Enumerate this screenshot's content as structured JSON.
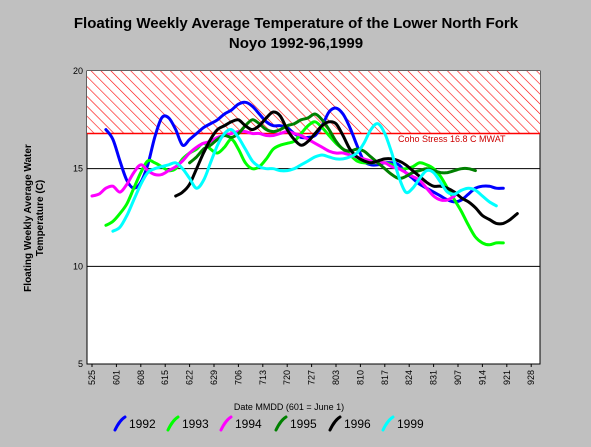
{
  "chart_data": {
    "type": "line",
    "title_line1": "Floating Weekly Average Temperature of the Lower North Fork",
    "title_line2": "Noyo 1992-96,1999",
    "ylabel_line1": "Floating Weekly Average Water",
    "ylabel_line2": "Temperature (C)",
    "xlabel": "Date MMDD (601 = June 1)",
    "ylim": [
      5,
      20
    ],
    "y_ticks": [
      "5",
      "10",
      "15",
      "20"
    ],
    "x_ticks": [
      "525",
      "601",
      "608",
      "615",
      "622",
      "629",
      "706",
      "713",
      "720",
      "727",
      "803",
      "810",
      "817",
      "824",
      "831",
      "907",
      "914",
      "921",
      "928"
    ],
    "threshold": {
      "value": 16.8,
      "label": "Coho Stress 16.8  C MWAT",
      "color": "#ff0000"
    },
    "legend_position": "bottom",
    "series": [
      {
        "name": "1992",
        "color": "#0000ff",
        "x": [
          4,
          6,
          8,
          10,
          12,
          14,
          16,
          18,
          20,
          22,
          24,
          26,
          28,
          30,
          32,
          34,
          36,
          38,
          40,
          42,
          44,
          46,
          48,
          50,
          52,
          54,
          56,
          58,
          60,
          62,
          64,
          66,
          68,
          70,
          72,
          74,
          76,
          78,
          80,
          82,
          84,
          86,
          88,
          90,
          92,
          94,
          96,
          98,
          100,
          102,
          104,
          106,
          108,
          110,
          112,
          114,
          116,
          118
        ],
        "y": [
          17.0,
          16.5,
          15.4,
          14.4,
          14.0,
          14.3,
          15.2,
          16.6,
          17.6,
          17.6,
          17.0,
          16.2,
          16.5,
          16.8,
          17.1,
          17.3,
          17.5,
          17.8,
          18.0,
          18.3,
          18.4,
          18.2,
          17.8,
          17.4,
          17.2,
          17.2,
          17.1,
          16.8,
          16.6,
          16.6,
          16.7,
          17.2,
          17.9,
          18.1,
          17.8,
          17.1,
          16.2,
          15.4,
          15.2,
          15.2,
          15.3,
          15.3,
          15.2,
          14.8,
          14.5,
          14.2,
          14.0,
          13.8,
          13.6,
          13.4,
          13.3,
          13.4,
          13.7,
          14.0,
          14.1,
          14.1,
          14.0,
          14.0
        ]
      },
      {
        "name": "1993",
        "color": "#00ff00",
        "x": [
          4,
          6,
          8,
          10,
          12,
          14,
          16,
          18,
          20,
          22,
          24,
          26,
          28,
          30,
          32,
          34,
          36,
          38,
          40,
          42,
          44,
          46,
          48,
          50,
          52,
          54,
          56,
          58,
          60,
          62,
          64,
          66,
          68,
          70,
          72,
          74,
          76,
          78,
          80,
          82,
          84,
          86,
          88,
          90,
          92,
          94,
          96,
          98,
          100,
          102,
          104,
          106,
          108,
          110,
          112,
          114,
          116,
          118
        ],
        "y": [
          12.1,
          12.3,
          12.7,
          13.2,
          14.0,
          14.8,
          15.4,
          15.3,
          15.1,
          14.9,
          15.0,
          15.5,
          15.8,
          16.0,
          16.3,
          16.0,
          15.8,
          16.1,
          16.5,
          16.0,
          15.3,
          15.0,
          15.1,
          15.5,
          16.0,
          16.2,
          16.3,
          16.4,
          16.8,
          17.2,
          17.4,
          17.1,
          16.7,
          16.3,
          16.0,
          15.7,
          15.4,
          15.3,
          15.3,
          15.3,
          15.3,
          15.2,
          15.0,
          15.0,
          15.1,
          15.3,
          15.2,
          15.0,
          14.6,
          14.0,
          13.4,
          12.8,
          12.1,
          11.5,
          11.2,
          11.1,
          11.2,
          11.2
        ]
      },
      {
        "name": "1994",
        "color": "#ff00ff",
        "x": [
          0,
          2,
          4,
          6,
          8,
          10,
          12,
          14,
          16,
          18,
          20,
          22,
          24,
          26,
          28,
          30,
          32,
          34,
          36,
          38,
          40,
          42,
          44,
          46,
          48,
          50,
          52,
          54,
          56,
          58,
          60,
          62,
          64,
          66,
          68,
          70,
          72,
          74,
          76,
          78,
          80,
          82,
          84,
          86,
          88,
          90,
          92,
          94,
          96,
          98,
          100,
          102,
          104
        ],
        "y": [
          13.6,
          13.7,
          14.0,
          14.1,
          13.8,
          14.2,
          14.8,
          15.2,
          14.9,
          14.7,
          14.7,
          14.9,
          15.1,
          15.4,
          15.8,
          16.1,
          16.3,
          16.4,
          16.6,
          16.7,
          16.8,
          16.9,
          16.9,
          16.8,
          16.8,
          16.7,
          16.7,
          16.8,
          16.9,
          16.8,
          16.7,
          16.5,
          16.3,
          16.1,
          15.9,
          15.8,
          15.8,
          15.7,
          15.6,
          15.5,
          15.4,
          15.3,
          15.3,
          15.1,
          15.0,
          14.8,
          14.6,
          14.4,
          14.0,
          13.6,
          13.4,
          13.4,
          13.6
        ]
      },
      {
        "name": "1995",
        "color": "#008000",
        "x": [
          28,
          30,
          32,
          34,
          36,
          38,
          40,
          42,
          44,
          46,
          48,
          50,
          52,
          54,
          56,
          58,
          60,
          62,
          64,
          66,
          68,
          70,
          72,
          74,
          76,
          78,
          80,
          82,
          84,
          86,
          88,
          90,
          92,
          94,
          96,
          98,
          100,
          102,
          104,
          106,
          108,
          110
        ],
        "y": [
          15.3,
          15.6,
          16.0,
          16.2,
          16.5,
          16.7,
          16.6,
          16.8,
          17.2,
          17.5,
          17.3,
          17.0,
          16.9,
          17.0,
          17.2,
          17.3,
          17.5,
          17.6,
          17.8,
          17.5,
          17.0,
          16.4,
          16.0,
          15.9,
          16.0,
          15.9,
          15.6,
          15.3,
          15.0,
          14.7,
          14.5,
          14.6,
          14.8,
          14.9,
          15.0,
          14.9,
          14.8,
          14.8,
          14.9,
          15.0,
          15.0,
          14.9
        ]
      },
      {
        "name": "1996",
        "color": "#000000",
        "x": [
          24,
          26,
          28,
          30,
          32,
          34,
          36,
          38,
          40,
          42,
          44,
          46,
          48,
          50,
          52,
          54,
          56,
          58,
          60,
          62,
          64,
          66,
          68,
          70,
          72,
          74,
          76,
          78,
          80,
          82,
          84,
          86,
          88,
          90,
          92,
          94,
          96,
          98,
          100,
          102,
          104,
          106,
          108,
          110,
          112,
          114,
          116,
          118,
          120,
          122
        ],
        "y": [
          13.6,
          13.8,
          14.2,
          15.0,
          15.8,
          16.5,
          17.0,
          17.2,
          17.4,
          17.5,
          17.2,
          17.0,
          17.2,
          17.6,
          17.9,
          17.7,
          17.0,
          16.5,
          16.2,
          16.4,
          16.8,
          17.2,
          17.4,
          17.3,
          16.7,
          16.0,
          15.6,
          15.4,
          15.3,
          15.4,
          15.5,
          15.5,
          15.4,
          15.2,
          14.9,
          14.6,
          14.3,
          14.1,
          14.1,
          14.0,
          13.8,
          13.5,
          13.3,
          13.0,
          12.6,
          12.4,
          12.2,
          12.2,
          12.4,
          12.7
        ]
      },
      {
        "name": "1999",
        "color": "#00ffff",
        "x": [
          6,
          8,
          10,
          12,
          14,
          16,
          18,
          20,
          22,
          24,
          26,
          28,
          30,
          32,
          34,
          36,
          38,
          40,
          42,
          44,
          46,
          48,
          50,
          52,
          54,
          56,
          58,
          60,
          62,
          64,
          66,
          68,
          70,
          72,
          74,
          76,
          78,
          80,
          82,
          84,
          86,
          88,
          90,
          92,
          94,
          96,
          98,
          100,
          102,
          104,
          106,
          108,
          110,
          112,
          114,
          116
        ],
        "y": [
          11.8,
          12.0,
          12.6,
          13.4,
          14.2,
          14.8,
          15.0,
          15.1,
          15.2,
          15.3,
          15.0,
          14.5,
          14.0,
          14.4,
          15.3,
          16.2,
          16.8,
          17.0,
          16.6,
          16.0,
          15.4,
          15.1,
          15.0,
          15.0,
          14.9,
          14.9,
          15.0,
          15.2,
          15.4,
          15.6,
          15.7,
          15.6,
          15.5,
          15.5,
          15.6,
          15.8,
          16.3,
          17.0,
          17.3,
          16.8,
          15.8,
          14.6,
          13.8,
          14.0,
          14.5,
          14.9,
          14.8,
          14.3,
          13.8,
          13.7,
          13.9,
          14.0,
          13.9,
          13.6,
          13.3,
          13.1
        ]
      }
    ]
  }
}
